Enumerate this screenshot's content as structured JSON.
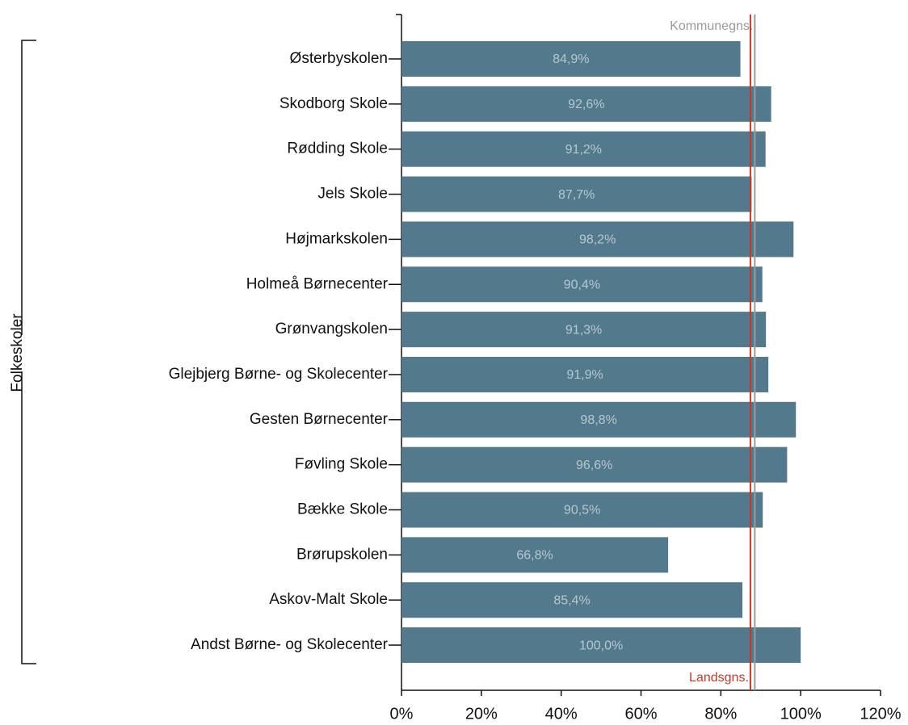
{
  "chart_data": {
    "type": "bar",
    "orientation": "horizontal",
    "group_label": "Folkeskoler",
    "categories": [
      "Østerbyskolen",
      "Skodborg Skole",
      "Rødding Skole",
      "Jels Skole",
      "Højmarkskolen",
      "Holmeå Børnecenter",
      "Grønvangskolen",
      "Glejbjerg Børne- og Skolecenter",
      "Gesten Børnecenter",
      "Føvling Skole",
      "Bække Skole",
      "Brørupskolen",
      "Askov-Malt Skole",
      "Andst Børne- og Skolecenter"
    ],
    "values": [
      84.9,
      92.6,
      91.2,
      87.7,
      98.2,
      90.4,
      91.3,
      91.9,
      98.8,
      96.6,
      90.5,
      66.8,
      85.4,
      100.0
    ],
    "value_labels": [
      "84,9%",
      "92,6%",
      "91,2%",
      "87,7%",
      "98,2%",
      "90,4%",
      "91,3%",
      "91,9%",
      "98,8%",
      "96,6%",
      "90,5%",
      "66,8%",
      "85,4%",
      "100,0%"
    ],
    "color": "#527a8c",
    "xlim": [
      0,
      120
    ],
    "xticks": [
      {
        "value": 0,
        "label": "0%"
      },
      {
        "value": 20,
        "label": "20%"
      },
      {
        "value": 40,
        "label": "40%"
      },
      {
        "value": 60,
        "label": "60%"
      },
      {
        "value": 80,
        "label": "80%"
      },
      {
        "value": 100,
        "label": "100%"
      },
      {
        "value": 120,
        "label": "120%"
      }
    ],
    "reference_lines": [
      {
        "label": "Kommunegns.",
        "value": 88.5,
        "color": "#9a9a9a",
        "position": "top"
      },
      {
        "label": "Landsgns.",
        "value": 87.4,
        "color": "#c0392b",
        "position": "bottom"
      }
    ]
  }
}
